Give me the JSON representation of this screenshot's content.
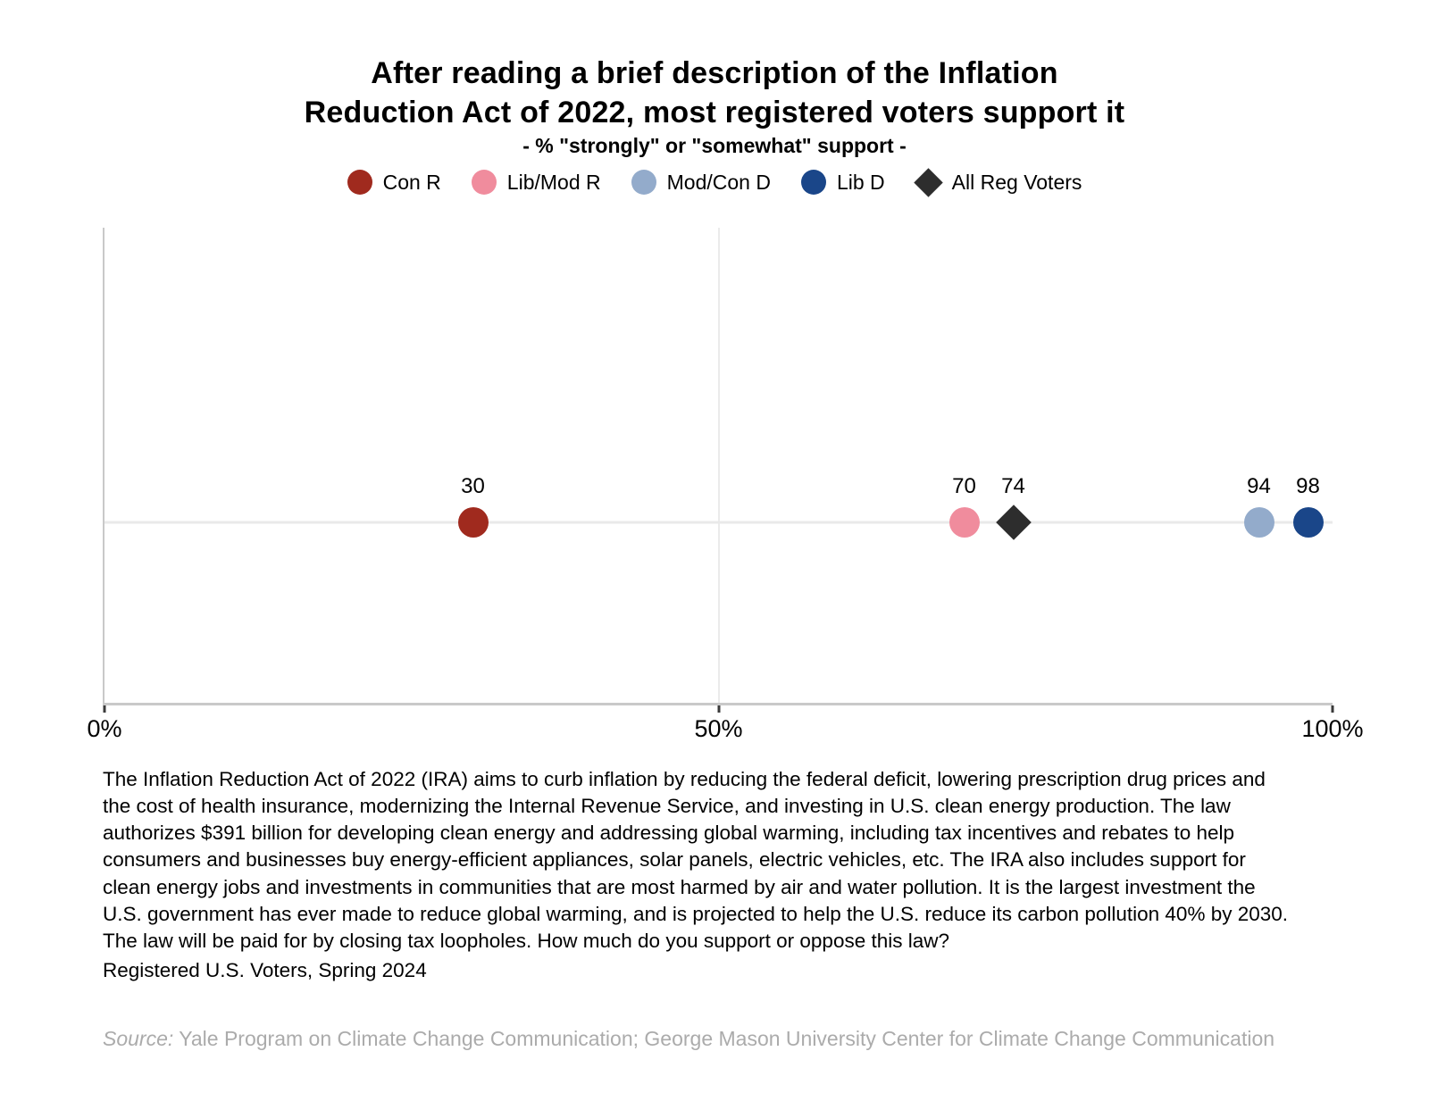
{
  "title": "After reading a brief description of the Inflation\nReduction Act of 2022, most registered voters support it",
  "subtitle": "- % \"strongly\" or \"somewhat\" support -",
  "legend": [
    {
      "label": "Con R",
      "color": "#A02A1E",
      "marker": "circle"
    },
    {
      "label": "Lib/Mod R",
      "color": "#F08C9D",
      "marker": "circle"
    },
    {
      "label": "Mod/Con D",
      "color": "#93ABCB",
      "marker": "circle"
    },
    {
      "label": "Lib D",
      "color": "#1A4689",
      "marker": "circle"
    },
    {
      "label": "All Reg Voters",
      "color": "#2D2D2D",
      "marker": "diamond"
    }
  ],
  "chart_data": {
    "type": "scatter",
    "title": "After reading a brief description of the Inflation Reduction Act of 2022, most registered voters support it",
    "subtitle": "- % \"strongly\" or \"somewhat\" support -",
    "xlabel": "",
    "ylabel": "",
    "xlim": [
      0,
      100
    ],
    "grid": "vertical line at 50% only",
    "legend_position": "top center",
    "x_ticks": [
      {
        "label": "0%",
        "value": 0
      },
      {
        "label": "50%",
        "value": 50
      },
      {
        "label": "100%",
        "value": 100
      }
    ],
    "series": [
      {
        "name": "Con R",
        "value": 30,
        "label": "30",
        "color": "#A02A1E",
        "marker": "circle"
      },
      {
        "name": "Lib/Mod R",
        "value": 70,
        "label": "70",
        "color": "#F08C9D",
        "marker": "circle"
      },
      {
        "name": "All Reg Voters",
        "value": 74,
        "label": "74",
        "color": "#2D2D2D",
        "marker": "diamond"
      },
      {
        "name": "Mod/Con D",
        "value": 94,
        "label": "94",
        "color": "#93ABCB",
        "marker": "circle"
      },
      {
        "name": "Lib D",
        "value": 98,
        "label": "98",
        "color": "#1A4689",
        "marker": "circle"
      }
    ]
  },
  "description": "The Inflation Reduction Act of 2022 (IRA) aims to curb inflation by reducing the federal deficit, lowering prescription drug prices and the cost of health insurance, modernizing the Internal Revenue Service, and investing in U.S. clean energy production. The law authorizes $391 billion for developing clean energy and addressing global warming, including tax incentives and rebates to help consumers and businesses buy energy-efficient appliances, solar panels, electric vehicles, etc. The IRA also includes support for clean energy jobs and investments in communities that are most harmed by air and water pollution. It is the largest investment the U.S. government has ever made to reduce global warming, and is projected to help the U.S. reduce its carbon pollution 40% by 2030. The law will be paid for by closing tax loopholes. How much do you support or oppose this law?",
  "population_label": "Registered U.S. Voters, Spring 2024",
  "source": {
    "prefix": "Source:",
    "text": " Yale Program on Climate Change Communication; George Mason University Center for Climate Change Communication"
  }
}
